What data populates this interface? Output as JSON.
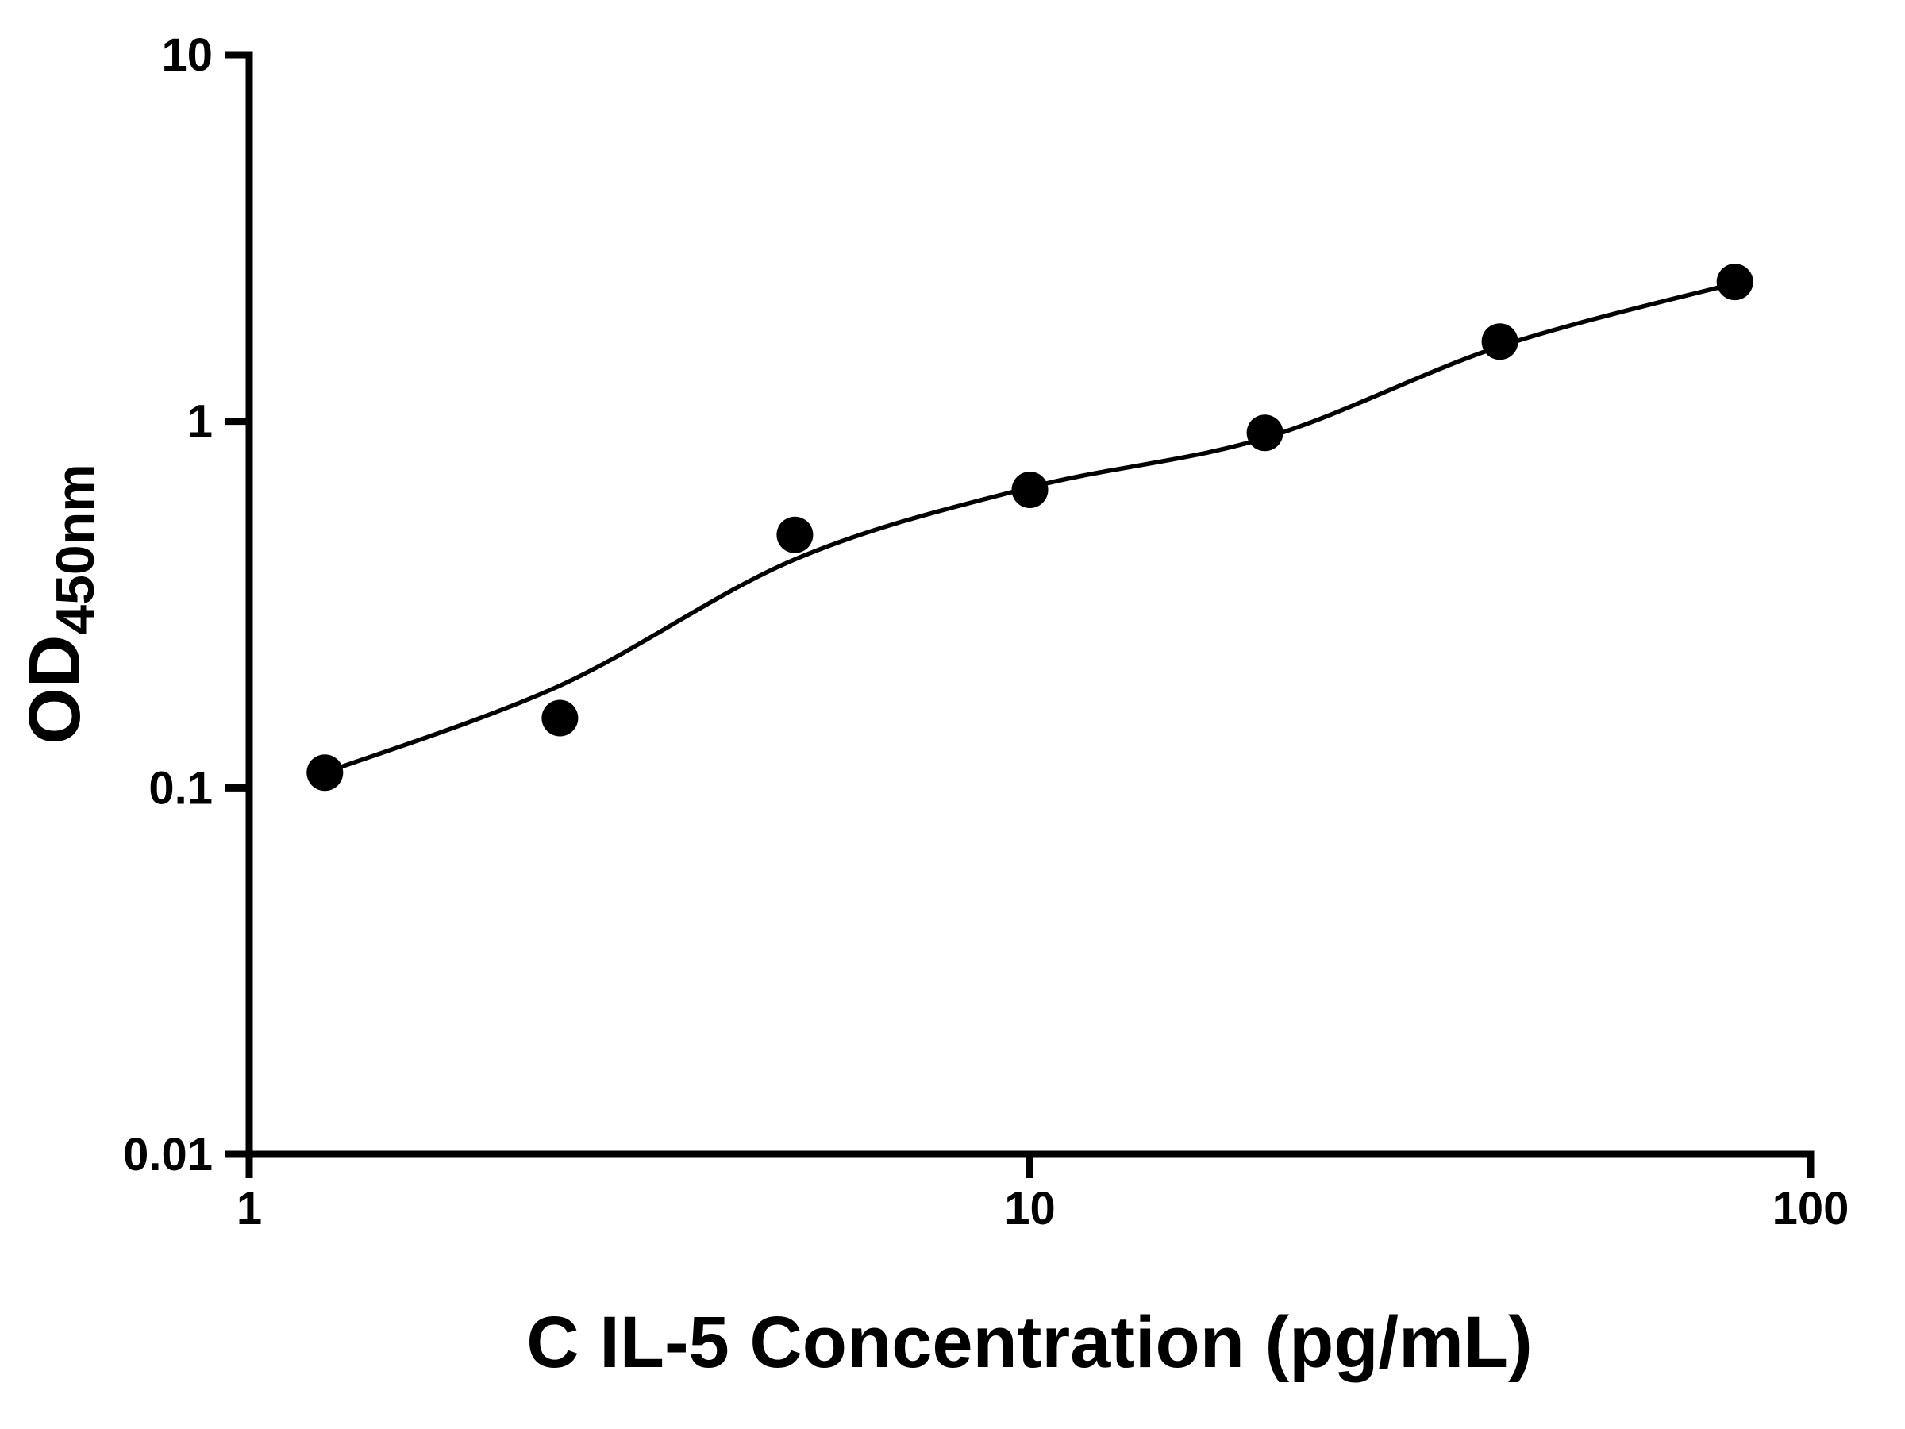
{
  "chart_data": {
    "type": "scatter",
    "title": "",
    "xlabel": "C IL-5 Concentration (pg/mL)",
    "ylabel_main": "OD",
    "ylabel_sub": "450nm",
    "x_scale": "log",
    "y_scale": "log",
    "xlim": [
      1,
      100
    ],
    "ylim": [
      0.01,
      10
    ],
    "x_ticks": [
      1,
      10,
      100
    ],
    "x_tick_labels": [
      "1",
      "10",
      "100"
    ],
    "y_ticks": [
      0.01,
      0.1,
      1,
      10
    ],
    "y_tick_labels": [
      "0.01",
      "0.1",
      "1",
      "10"
    ],
    "grid": false,
    "legend": null,
    "points": {
      "x": [
        1.25,
        2.5,
        5,
        10,
        20,
        40,
        80
      ],
      "y": [
        0.11,
        0.155,
        0.49,
        0.65,
        0.93,
        1.65,
        2.4
      ]
    },
    "fit_curve": {
      "x": [
        1.25,
        2.5,
        5,
        10,
        20,
        40,
        80
      ],
      "y": [
        0.11,
        0.19,
        0.42,
        0.66,
        0.9,
        1.6,
        2.38
      ]
    },
    "colors": {
      "points": "#000000",
      "line": "#000000",
      "axis": "#000000",
      "background": "#ffffff"
    }
  }
}
